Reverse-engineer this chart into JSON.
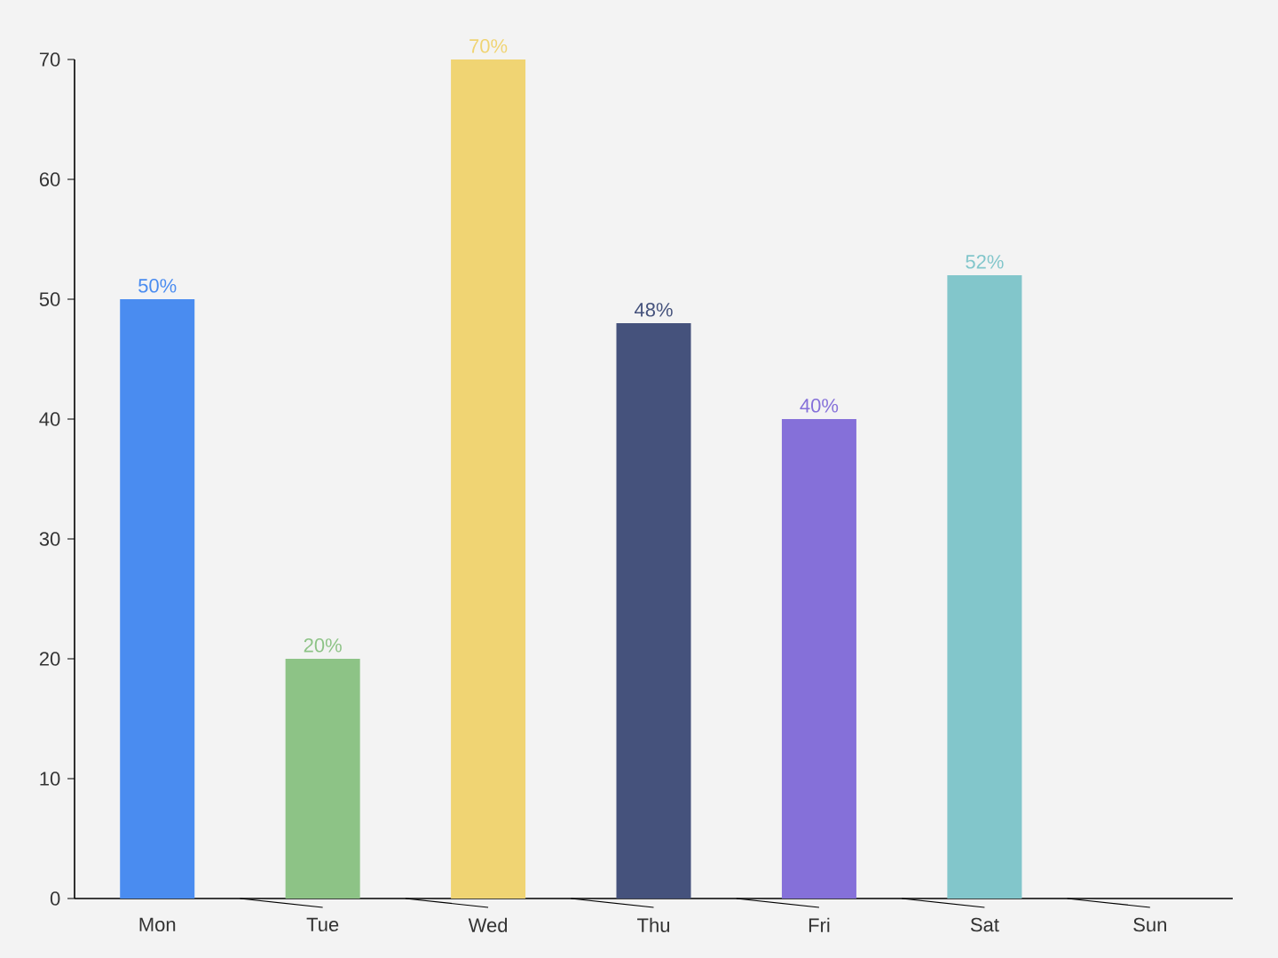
{
  "chart_data": {
    "type": "bar",
    "categories": [
      "Mon",
      "Tue",
      "Wed",
      "Thu",
      "Fri",
      "Sat",
      "Sun"
    ],
    "values": [
      50,
      20,
      70,
      48,
      40,
      52,
      null
    ],
    "colors": [
      "#4a8cf0",
      "#8dc386",
      "#f0d473",
      "#45527c",
      "#8570d9",
      "#82c6cb",
      null
    ],
    "value_labels": [
      "50%",
      "20%",
      "70%",
      "48%",
      "40%",
      "52%",
      null
    ],
    "ylim": [
      0,
      70
    ],
    "yticks": [
      0,
      10,
      20,
      30,
      40,
      50,
      60,
      70
    ]
  }
}
